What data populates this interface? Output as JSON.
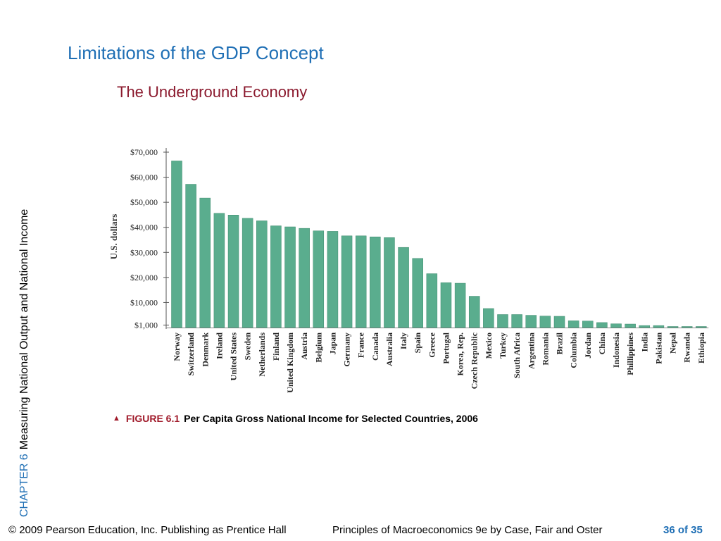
{
  "slide": {
    "title": "Limitations of the GDP Concept",
    "subtitle": "The Underground Economy",
    "chapter": "CHAPTER 6",
    "chapter_title": "Measuring National Output and National Income"
  },
  "figure": {
    "number": "FIGURE 6.1",
    "title": "Per Capita Gross National Income for Selected Countries, 2006"
  },
  "footer": {
    "copyright": "© 2009 Pearson Education, Inc. Publishing as Prentice Hall",
    "book": "Principles of Macroeconomics 9e by Case, Fair and Oster",
    "page": "36 of 35"
  },
  "colors": {
    "bar": "#5aad8e",
    "title": "#1f6fb5",
    "subtitle": "#8b1a2e",
    "figure_number": "#a01a2a"
  },
  "chart_data": {
    "type": "bar",
    "title": "",
    "xlabel": "",
    "ylabel": "U.S. dollars",
    "ylim": [
      0,
      70000
    ],
    "ytick_values": [
      1000,
      10000,
      20000,
      30000,
      40000,
      50000,
      60000,
      70000
    ],
    "ytick_labels": [
      "$1,000",
      "$10,000",
      "$20,000",
      "$30,000",
      "$40,000",
      "$50,000",
      "$60,000",
      "$70,000"
    ],
    "grid": false,
    "categories": [
      "Norway",
      "Switzerland",
      "Denmark",
      "Ireland",
      "United States",
      "Sweden",
      "Netherlands",
      "Finland",
      "United Kingdom",
      "Austria",
      "Belgium",
      "Japan",
      "Germany",
      "France",
      "Canada",
      "Australia",
      "Italy",
      "Spain",
      "Greece",
      "Portugal",
      "Korea, Rep.",
      "Czech Republic",
      "Mexico",
      "Turkey",
      "South Africa",
      "Argentina",
      "Romania",
      "Brazil",
      "Columbia",
      "Jordan",
      "China",
      "Indonesia",
      "Phillippines",
      "India",
      "Pakistan",
      "Nepal",
      "Rwanda",
      "Ethiopia"
    ],
    "values": [
      66500,
      57200,
      51700,
      45600,
      44900,
      43600,
      42600,
      40600,
      40200,
      39600,
      38600,
      38400,
      36600,
      36600,
      36200,
      35900,
      32000,
      27600,
      21500,
      17900,
      17700,
      12500,
      7600,
      5200,
      5200,
      4900,
      4600,
      4500,
      2700,
      2600,
      2000,
      1500,
      1400,
      800,
      800,
      300,
      300,
      200
    ],
    "color": "#5aad8e"
  }
}
